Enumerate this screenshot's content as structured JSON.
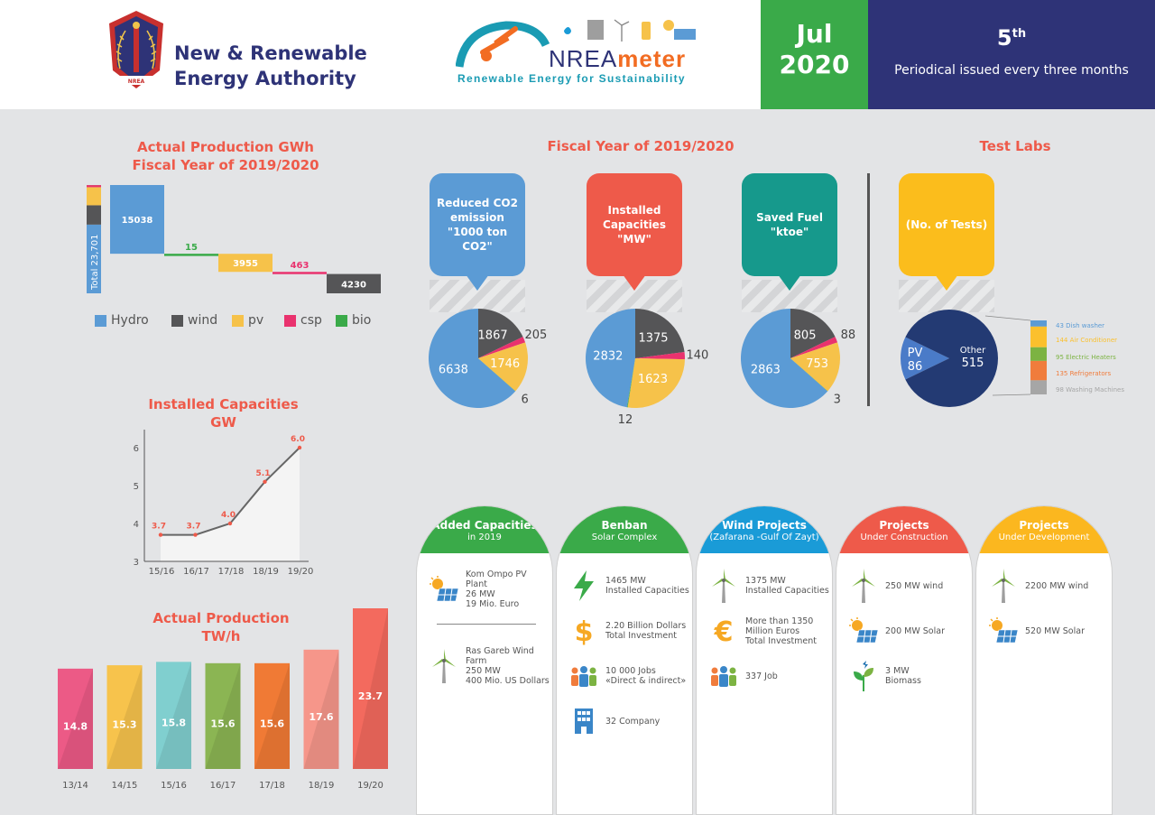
{
  "header": {
    "org_name_line1": "New & Renewable",
    "org_name_line2": "Energy Authority",
    "logo_caption": "NREA",
    "brand_prefix": "NREA",
    "brand_suffix": "meter",
    "brand_tagline": "Renewable Energy for Sustainability",
    "month": "Jul",
    "year": "2020",
    "issue_number": "5",
    "issue_suffix": "th",
    "issue_text": "Periodical issued every three months"
  },
  "sections": {
    "fiscal_year_title": "Fiscal Year of 2019/2020",
    "test_labs_title": "Test Labs"
  },
  "bubbles": {
    "co2": "Reduced CO2 emission \"1000 ton CO2\"",
    "capacities": "Installed Capacities \"MW\"",
    "fuel": "Saved Fuel \"ktoe\"",
    "tests": "(No. of Tests)"
  },
  "colors": {
    "hydro": "#5b9bd5",
    "wind": "#555557",
    "pv": "#f6c24a",
    "csp": "#e9326e",
    "bio": "#3aaa49",
    "accent_red": "#ee5a4a",
    "navy": "#2e3377"
  },
  "panels": [
    {
      "title": "Added Capacities",
      "subtitle": "in 2019",
      "color": "#3aaa49",
      "items": [
        {
          "icon": "solar-panel-icon",
          "text": "Kom Ompo PV Plant\n26 MW\n19 Mio. Euro"
        },
        {
          "icon": "wind-turbine-icon",
          "text": "Ras Gareb Wind Farm\n250 MW\n400 Mio. US Dollars"
        }
      ]
    },
    {
      "title": "Benban",
      "subtitle": "Solar Complex",
      "color": "#3aaa49",
      "items": [
        {
          "icon": "lightning-icon",
          "text": "1465 MW\nInstalled Capacities"
        },
        {
          "icon": "dollar-icon",
          "text": "2.20 Billion Dollars\nTotal Investment"
        },
        {
          "icon": "people-icon",
          "text": "10 000 Jobs\n«Direct & indirect»"
        },
        {
          "icon": "building-icon",
          "text": "32 Company"
        }
      ]
    },
    {
      "title": "Wind Projects",
      "subtitle": "(Zafarana -Gulf Of Zayt)",
      "color": "#1a9bd7",
      "items": [
        {
          "icon": "wind-turbine-icon",
          "text": "1375 MW\nInstalled Capacities"
        },
        {
          "icon": "euro-icon",
          "text": "More than 1350\nMillion Euros\nTotal Investment"
        },
        {
          "icon": "people-icon",
          "text": "337 Job"
        }
      ]
    },
    {
      "title": "Projects",
      "subtitle": "Under Construction",
      "color": "#ee5a4a",
      "items": [
        {
          "icon": "wind-turbine-icon",
          "text": "250 MW wind"
        },
        {
          "icon": "solar-panel-icon",
          "text": "200 MW Solar"
        },
        {
          "icon": "biomass-icon",
          "text": "3 MW\nBiomass"
        }
      ]
    },
    {
      "title": "Projects",
      "subtitle": "Under Development",
      "color": "#fbb71f",
      "items": [
        {
          "icon": "wind-turbine-icon",
          "text": "2200 MW wind"
        },
        {
          "icon": "solar-panel-icon",
          "text": "520 MW Solar"
        }
      ]
    }
  ],
  "chart_data": [
    {
      "type": "bar",
      "title": "Actual Production GWh\nFiscal Year of 2019/2020",
      "subtype": "waterfall",
      "total_label": "Total 23,701",
      "total": 23701,
      "categories": [
        "Hydro",
        "wind",
        "pv",
        "csp",
        "bio"
      ],
      "waterfall_order": [
        "Hydro",
        "bio",
        "pv",
        "csp",
        "wind"
      ],
      "values": {
        "Hydro": 15038,
        "bio": 15,
        "pv": 3955,
        "csp": 463,
        "wind": 4230
      },
      "legend": [
        "Hydro",
        "wind",
        "pv",
        "csp",
        "bio"
      ]
    },
    {
      "type": "pie",
      "title": "Reduced CO2 emission \"1000 ton CO2\"",
      "slices": [
        {
          "name": "Hydro",
          "value": 6638
        },
        {
          "name": "wind",
          "value": 1867
        },
        {
          "name": "csp",
          "value": 205
        },
        {
          "name": "pv",
          "value": 1746
        },
        {
          "name": "bio",
          "value": 6
        }
      ]
    },
    {
      "type": "pie",
      "title": "Installed Capacities \"MW\"",
      "slices": [
        {
          "name": "Hydro",
          "value": 2832
        },
        {
          "name": "wind",
          "value": 1375
        },
        {
          "name": "csp",
          "value": 140
        },
        {
          "name": "pv",
          "value": 1623
        },
        {
          "name": "bio",
          "value": 12
        }
      ]
    },
    {
      "type": "pie",
      "title": "Saved Fuel \"ktoe\"",
      "slices": [
        {
          "name": "Hydro",
          "value": 2863
        },
        {
          "name": "wind",
          "value": 805
        },
        {
          "name": "csp",
          "value": 88
        },
        {
          "name": "pv",
          "value": 753
        },
        {
          "name": "bio",
          "value": 3
        }
      ]
    },
    {
      "type": "pie",
      "title": "(No. of Tests)",
      "slices": [
        {
          "name": "PV",
          "value": 86
        },
        {
          "name": "Other",
          "value": 515
        }
      ],
      "breakdown": [
        {
          "name": "Dish washer",
          "value": 43,
          "color": "#5b9bd5"
        },
        {
          "name": "Air Conditioner",
          "value": 144,
          "color": "#fbc02d"
        },
        {
          "name": "Electric Heaters",
          "value": 95,
          "color": "#7cb342"
        },
        {
          "name": "Refrigerators",
          "value": 135,
          "color": "#f07c3c"
        },
        {
          "name": "Washing Machines",
          "value": 98,
          "color": "#a6a6a6"
        }
      ]
    },
    {
      "type": "area",
      "title": "Installed Capacities\nGW",
      "x": [
        "15/16",
        "16/17",
        "17/18",
        "18/19",
        "19/20"
      ],
      "values": [
        3.7,
        3.7,
        4.0,
        5.1,
        6.0
      ],
      "ylim": [
        3,
        6
      ],
      "yticks": [
        3,
        4,
        5,
        6
      ]
    },
    {
      "type": "bar",
      "title": "Actual Production\nTW/h",
      "categories": [
        "13/14",
        "14/15",
        "15/16",
        "16/17",
        "17/18",
        "18/19",
        "19/20"
      ],
      "values": [
        14.8,
        15.3,
        15.8,
        15.6,
        15.6,
        17.6,
        23.7
      ],
      "colors": [
        "#ec5a86",
        "#f7c34c",
        "#80cfcf",
        "#8bb553",
        "#f07a35",
        "#f6968a",
        "#f36a5e"
      ]
    }
  ]
}
